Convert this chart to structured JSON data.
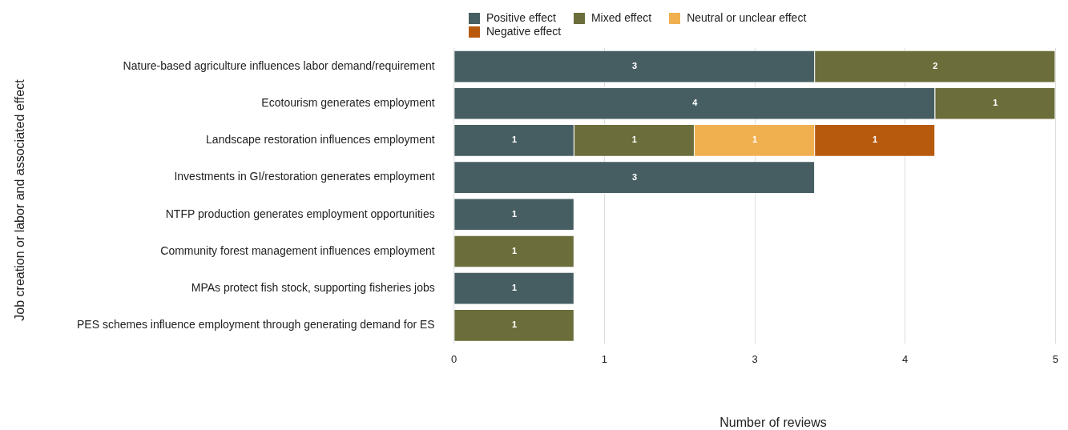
{
  "chart_data": {
    "type": "bar",
    "orientation": "horizontal",
    "stacked": true,
    "xlabel": "Number of reviews",
    "ylabel": "Job creation or labor and associated effect",
    "categories": [
      "Nature-based agriculture influences labor demand/requirement",
      "Ecotourism generates employment",
      "Landscape restoration influences employment",
      "Investments in GI/restoration generates employment",
      "NTFP production generates employment opportunities",
      "Community forest management influences employment",
      "MPAs protect fish stock, supporting fisheries jobs",
      "PES schemes influence employment through generating demand for ES"
    ],
    "series": [
      {
        "name": "Positive effect",
        "color": "#465e62",
        "values": [
          3,
          4,
          1,
          3,
          1,
          null,
          1,
          null
        ]
      },
      {
        "name": "Mixed effect",
        "color": "#6b6d3a",
        "values": [
          2,
          1,
          1,
          null,
          null,
          1,
          null,
          1
        ]
      },
      {
        "name": "Neutral or unclear effect",
        "color": "#f0b050",
        "values": [
          null,
          null,
          1,
          null,
          null,
          null,
          null,
          null
        ]
      },
      {
        "name": "Negative effect",
        "color": "#b85a0e",
        "values": [
          null,
          null,
          1,
          null,
          null,
          null,
          null,
          null
        ]
      }
    ],
    "xlim": [
      0,
      5
    ],
    "xticks": [
      0,
      {
        "value": 1.25,
        "label": "1"
      },
      {
        "value": 2.5,
        "label": "3"
      },
      {
        "value": 3.75,
        "label": "4"
      },
      5
    ],
    "grid": "x",
    "legend": "top",
    "data_labels": true
  }
}
